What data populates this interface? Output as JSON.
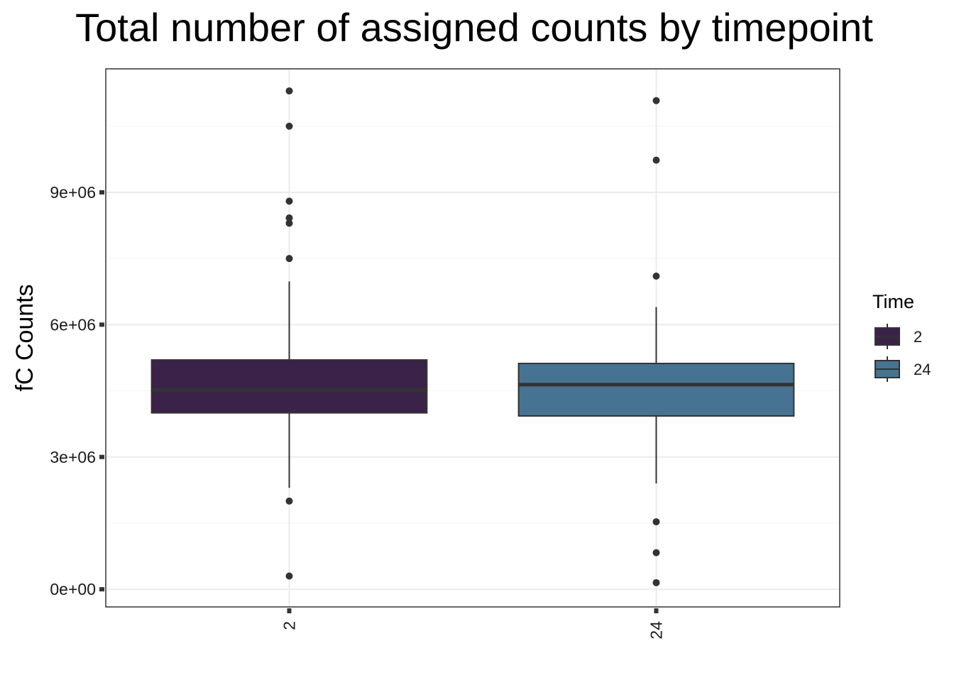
{
  "chart_data": {
    "type": "boxplot",
    "title": "Total number of assigned counts by timepoint",
    "xlabel": "",
    "ylabel": "fC Counts",
    "ylim": [
      -400000,
      11800000
    ],
    "y_ticks": [
      0,
      3000000,
      6000000,
      9000000
    ],
    "y_tick_labels": [
      "0e+00",
      "3e+06",
      "6e+06",
      "9e+06"
    ],
    "categories": [
      "2",
      "24"
    ],
    "grid": true,
    "legend": {
      "title": "Time",
      "position": "right",
      "entries": [
        {
          "label": "2",
          "color": "#3b2249"
        },
        {
          "label": "24",
          "color": "#467391"
        }
      ]
    },
    "series": [
      {
        "name": "2",
        "color": "#3b2249",
        "whisker_low": 2300000,
        "q1": 4000000,
        "median": 4520000,
        "q3": 5200000,
        "whisker_high": 6980000,
        "outliers": [
          300000,
          2000000,
          7500000,
          8300000,
          8420000,
          8800000,
          10500000,
          11300000
        ]
      },
      {
        "name": "24",
        "color": "#467391",
        "whisker_low": 2400000,
        "q1": 3930000,
        "median": 4640000,
        "q3": 5120000,
        "whisker_high": 6400000,
        "outliers": [
          150000,
          830000,
          1530000,
          7100000,
          9730000,
          11080000
        ]
      }
    ]
  }
}
